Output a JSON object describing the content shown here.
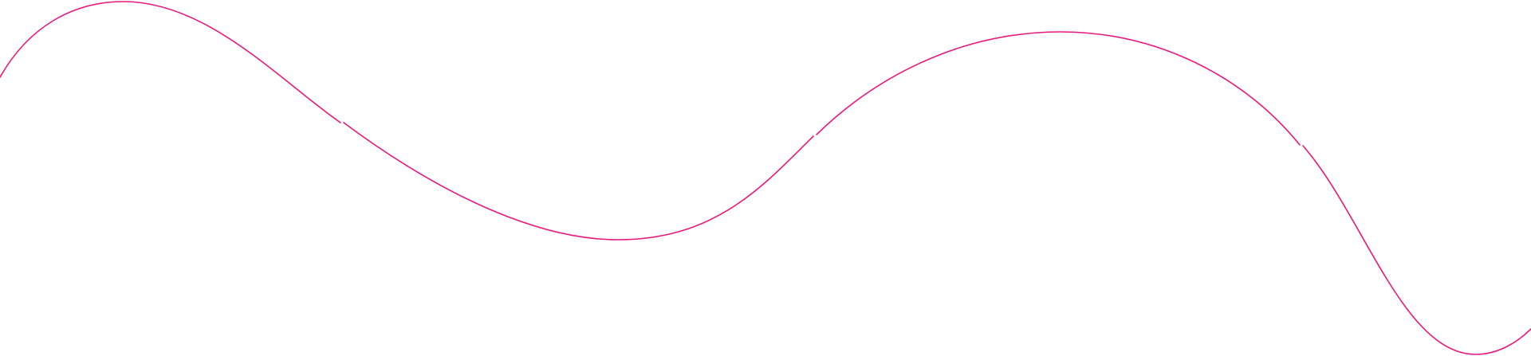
{
  "decoration": {
    "type": "wave-line",
    "stroke_color": "#e8187d",
    "background_color": "#ffffff",
    "segment_count": 4
  }
}
